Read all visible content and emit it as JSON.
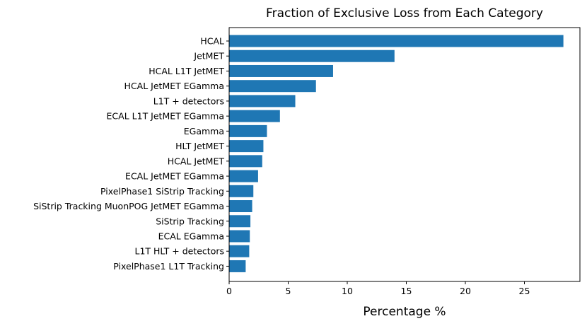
{
  "chart_data": {
    "type": "bar",
    "orientation": "horizontal",
    "title": "Fraction of Exclusive Loss from Each Category",
    "xlabel": "Percentage %",
    "ylabel": "",
    "categories": [
      "HCAL",
      "JetMET",
      "HCAL L1T JetMET",
      "HCAL JetMET EGamma",
      "L1T + detectors",
      "ECAL L1T JetMET EGamma",
      "EGamma",
      "HLT JetMET",
      "HCAL JetMET",
      "ECAL JetMET EGamma",
      "PixelPhase1 SiStrip Tracking",
      "SiStrip Tracking MuonPOG JetMET EGamma",
      "SiStrip Tracking",
      "ECAL EGamma",
      "L1T HLT + detectors",
      "PixelPhase1 L1T Tracking"
    ],
    "values": [
      28.3,
      14.0,
      8.8,
      7.35,
      5.6,
      4.3,
      3.2,
      2.9,
      2.8,
      2.45,
      2.05,
      1.95,
      1.8,
      1.75,
      1.7,
      1.4
    ],
    "xlim": [
      0,
      29.7
    ],
    "xticks": [
      0,
      5,
      10,
      15,
      20,
      25
    ],
    "grid": false,
    "bar_color": "#1f77b4"
  }
}
